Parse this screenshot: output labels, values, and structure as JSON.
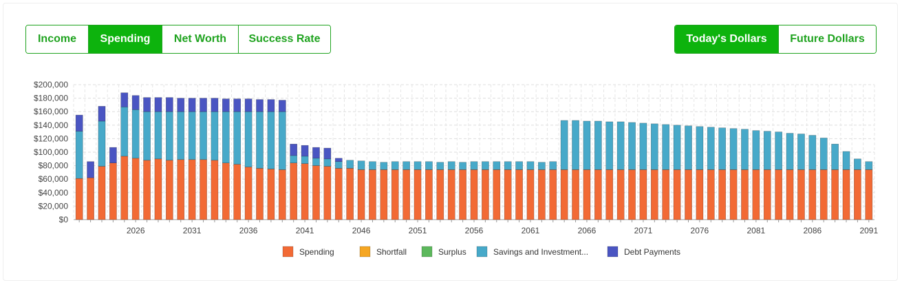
{
  "tabs": [
    {
      "label": "Income",
      "active": false
    },
    {
      "label": "Spending",
      "active": true
    },
    {
      "label": "Net Worth",
      "active": false
    },
    {
      "label": "Success Rate",
      "active": false
    }
  ],
  "dollar_toggle": [
    {
      "label": "Today's Dollars",
      "active": true
    },
    {
      "label": "Future Dollars",
      "active": false
    }
  ],
  "colors": {
    "accent": "#0db30d",
    "spending": "#f26a35",
    "shortfall": "#f5a623",
    "surplus": "#5cb85c",
    "savings": "#47a9c9",
    "debt": "#4a55c2"
  },
  "chart_data": {
    "type": "bar",
    "stacked": true,
    "title": "",
    "xlabel": "",
    "ylabel": "",
    "ylim": [
      0,
      200000
    ],
    "y_ticks": [
      "$0",
      "$20,000",
      "$40,000",
      "$60,000",
      "$80,000",
      "$100,000",
      "$120,000",
      "$140,000",
      "$160,000",
      "$180,000",
      "$200,000"
    ],
    "x_ticks": [
      "2026",
      "2031",
      "2036",
      "2041",
      "2046",
      "2051",
      "2056",
      "2061",
      "2066",
      "2071",
      "2076",
      "2081",
      "2086",
      "2091"
    ],
    "grid": true,
    "legend_position": "bottom",
    "categories": [
      2021,
      2022,
      2023,
      2024,
      2025,
      2026,
      2027,
      2028,
      2029,
      2030,
      2031,
      2032,
      2033,
      2034,
      2035,
      2036,
      2037,
      2038,
      2039,
      2040,
      2041,
      2042,
      2043,
      2044,
      2045,
      2046,
      2047,
      2048,
      2049,
      2050,
      2051,
      2052,
      2053,
      2054,
      2055,
      2056,
      2057,
      2058,
      2059,
      2060,
      2061,
      2062,
      2063,
      2064,
      2065,
      2066,
      2067,
      2068,
      2069,
      2070,
      2071,
      2072,
      2073,
      2074,
      2075,
      2076,
      2077,
      2078,
      2079,
      2080,
      2081,
      2082,
      2083,
      2084,
      2085,
      2086,
      2087,
      2088,
      2089,
      2090,
      2091
    ],
    "series": [
      {
        "name": "Spending",
        "color": "#f26a35",
        "values": [
          61000,
          62000,
          79000,
          84000,
          94000,
          91000,
          88000,
          90000,
          88000,
          89000,
          89000,
          89000,
          88000,
          84000,
          82000,
          78000,
          76000,
          75000,
          74000,
          84000,
          83000,
          80000,
          79000,
          76000,
          76000,
          74000,
          74000,
          74000,
          74000,
          74000,
          74000,
          74000,
          74000,
          74000,
          74000,
          74000,
          74000,
          74000,
          74000,
          74000,
          74000,
          74000,
          74000,
          74000,
          74000,
          74000,
          74000,
          74000,
          74000,
          74000,
          74000,
          74000,
          74000,
          74000,
          74000,
          74000,
          74000,
          74000,
          74000,
          74000,
          74000,
          74000,
          74000,
          74000,
          74000,
          74000,
          74000,
          74000,
          74000,
          74000,
          74000
        ]
      },
      {
        "name": "Shortfall",
        "color": "#f5a623",
        "values": [
          0,
          0,
          0,
          0,
          0,
          0,
          0,
          0,
          0,
          0,
          0,
          0,
          0,
          0,
          0,
          0,
          0,
          0,
          0,
          0,
          0,
          0,
          0,
          0,
          0,
          0,
          0,
          0,
          0,
          0,
          0,
          0,
          0,
          0,
          0,
          0,
          0,
          0,
          0,
          0,
          0,
          0,
          0,
          0,
          0,
          0,
          0,
          0,
          0,
          0,
          0,
          0,
          0,
          0,
          0,
          0,
          0,
          0,
          0,
          0,
          0,
          0,
          0,
          0,
          0,
          0,
          0,
          0,
          0,
          0,
          0
        ]
      },
      {
        "name": "Surplus",
        "color": "#5cb85c",
        "values": [
          0,
          0,
          0,
          0,
          0,
          0,
          0,
          0,
          0,
          0,
          0,
          0,
          0,
          0,
          0,
          0,
          0,
          0,
          0,
          0,
          0,
          0,
          0,
          0,
          0,
          0,
          0,
          0,
          0,
          0,
          0,
          0,
          0,
          0,
          0,
          0,
          0,
          0,
          0,
          0,
          0,
          0,
          0,
          0,
          0,
          0,
          0,
          0,
          0,
          0,
          0,
          0,
          0,
          0,
          0,
          0,
          0,
          0,
          0,
          0,
          0,
          0,
          0,
          0,
          0,
          0,
          0,
          0,
          0,
          0,
          0
        ]
      },
      {
        "name": "Savings and Investment...",
        "color": "#47a9c9",
        "values": [
          70000,
          0,
          67000,
          0,
          73000,
          72000,
          72000,
          70000,
          72000,
          71000,
          71000,
          71000,
          72000,
          76000,
          78000,
          82000,
          84000,
          85000,
          86000,
          11000,
          11000,
          11000,
          11000,
          10000,
          12000,
          13000,
          12000,
          11000,
          12000,
          12000,
          12000,
          12000,
          11000,
          12000,
          11000,
          12000,
          12000,
          12000,
          12000,
          12000,
          12000,
          11000,
          12000,
          73000,
          73000,
          72000,
          72000,
          71000,
          71000,
          70000,
          69000,
          68000,
          67000,
          66000,
          65000,
          64000,
          63000,
          62000,
          61000,
          60000,
          58000,
          57000,
          56000,
          54000,
          53000,
          51000,
          47000,
          38000,
          27000,
          16000,
          12000
        ]
      },
      {
        "name": "Debt Payments",
        "color": "#4a55c2",
        "values": [
          24000,
          24000,
          22000,
          23000,
          21000,
          21000,
          21000,
          21000,
          21000,
          20000,
          20000,
          20000,
          20000,
          19000,
          19000,
          19000,
          18000,
          18000,
          17000,
          17000,
          16000,
          16000,
          16000,
          5000,
          0,
          0,
          0,
          0,
          0,
          0,
          0,
          0,
          0,
          0,
          0,
          0,
          0,
          0,
          0,
          0,
          0,
          0,
          0,
          0,
          0,
          0,
          0,
          0,
          0,
          0,
          0,
          0,
          0,
          0,
          0,
          0,
          0,
          0,
          0,
          0,
          0,
          0,
          0,
          0,
          0,
          0,
          0,
          0,
          0,
          0,
          0
        ]
      }
    ]
  }
}
